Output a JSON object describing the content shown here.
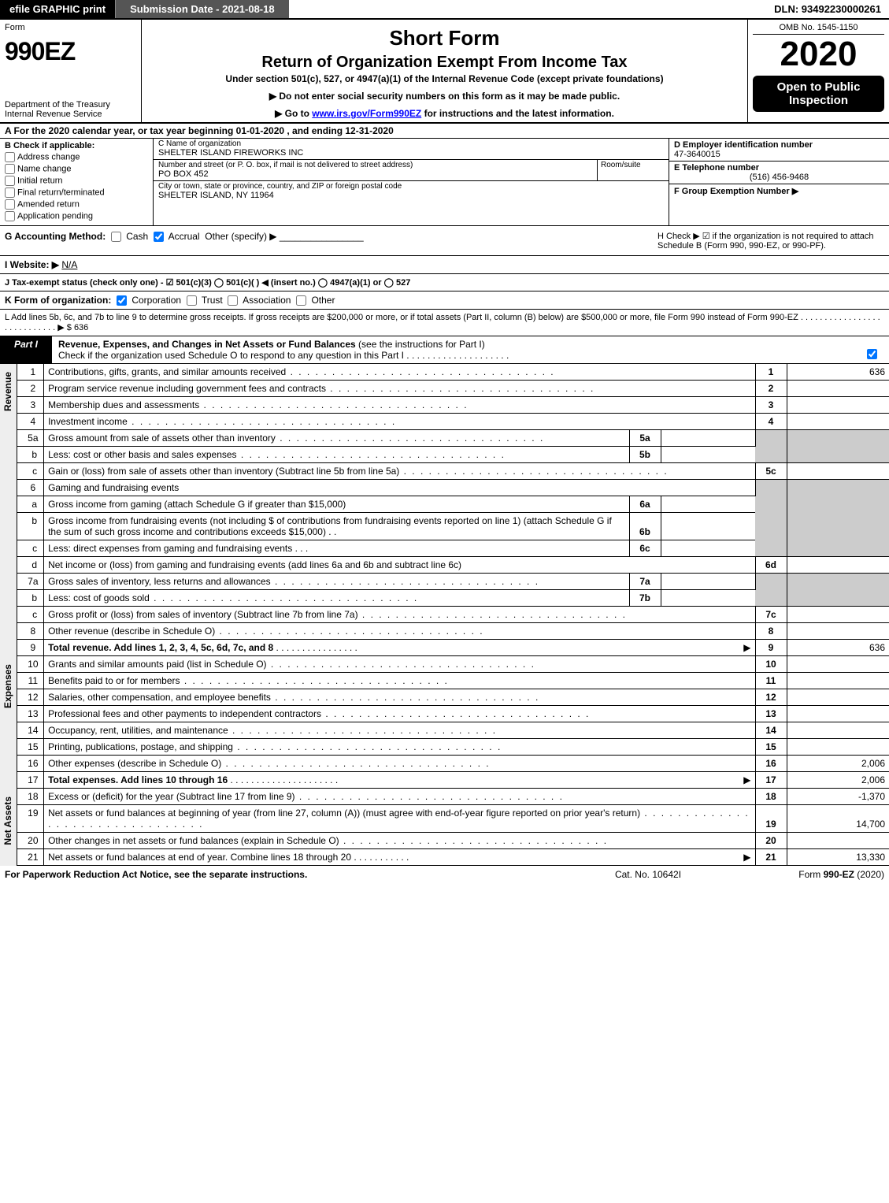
{
  "colors": {
    "black": "#000000",
    "white": "#ffffff",
    "dark_gray": "#555555",
    "shade": "#cccccc",
    "side_bg": "#eeeeee",
    "link": "#0000ff"
  },
  "top": {
    "efile": "efile GRAPHIC print",
    "submission": "Submission Date - 2021-08-18",
    "dln": "DLN: 93492230000261"
  },
  "header": {
    "form_small": "Form",
    "form_no": "990EZ",
    "dept1": "Department of the Treasury",
    "dept2": "Internal Revenue Service",
    "title1": "Short Form",
    "title2": "Return of Organization Exempt From Income Tax",
    "subtitle": "Under section 501(c), 527, or 4947(a)(1) of the Internal Revenue Code (except private foundations)",
    "note1": "▶ Do not enter social security numbers on this form as it may be made public.",
    "note2_pre": "▶ Go to ",
    "note2_link": "www.irs.gov/Form990EZ",
    "note2_post": " for instructions and the latest information.",
    "omb": "OMB No. 1545-1150",
    "year": "2020",
    "open": "Open to Public Inspection"
  },
  "row_a": "A  For the 2020 calendar year, or tax year beginning 01-01-2020 , and ending 12-31-2020",
  "col_b": {
    "title": "B  Check if applicable:",
    "opts": [
      "Address change",
      "Name change",
      "Initial return",
      "Final return/terminated",
      "Amended return",
      "Application pending"
    ]
  },
  "col_c": {
    "name_lbl": "C Name of organization",
    "name": "SHELTER ISLAND FIREWORKS INC",
    "street_lbl": "Number and street (or P. O. box, if mail is not delivered to street address)",
    "room_lbl": "Room/suite",
    "street": "PO BOX 452",
    "city_lbl": "City or town, state or province, country, and ZIP or foreign postal code",
    "city": "SHELTER ISLAND, NY  11964"
  },
  "col_d": {
    "ein_lbl": "D Employer identification number",
    "ein": "47-3640015",
    "phone_lbl": "E Telephone number",
    "phone": "(516) 456-9468",
    "group_lbl": "F Group Exemption Number   ▶"
  },
  "row_g": {
    "label": "G Accounting Method:",
    "cash": "Cash",
    "accrual": "Accrual",
    "other": "Other (specify) ▶"
  },
  "row_h": "H  Check ▶ ☑ if the organization is not required to attach Schedule B (Form 990, 990-EZ, or 990-PF).",
  "row_i": {
    "label": "I Website: ▶",
    "val": "N/A"
  },
  "row_j": "J Tax-exempt status (check only one) - ☑ 501(c)(3)  ◯ 501(c)(  ) ◀ (insert no.)  ◯ 4947(a)(1) or  ◯ 527",
  "row_k": {
    "label": "K Form of organization:",
    "corp": "Corporation",
    "trust": "Trust",
    "assoc": "Association",
    "other": "Other"
  },
  "row_l": {
    "text": "L Add lines 5b, 6c, and 7b to line 9 to determine gross receipts. If gross receipts are $200,000 or more, or if total assets (Part II, column (B) below) are $500,000 or more, file Form 990 instead of Form 990-EZ  .  .  .  .  .  .  .  .  .  .  .  .  .  .  .  .  .  .  .  .  .  .  .  .  .  .  .  .  ▶ $",
    "amount": "636"
  },
  "part1": {
    "tab": "Part I",
    "title_b": "Revenue, Expenses, and Changes in Net Assets or Fund Balances",
    "title_rest": " (see the instructions for Part I)",
    "check_line": "Check if the organization used Schedule O to respond to any question in this Part I .  .  .  .  .  .  .  .  .  .  .  .  .  .  .  .  .  .  .  ."
  },
  "side_labels": {
    "rev": "Revenue",
    "exp": "Expenses",
    "net": "Net Assets"
  },
  "lines": {
    "l1": {
      "no": "1",
      "desc": "Contributions, gifts, grants, and similar amounts received",
      "rt_no": "1",
      "rt_val": "636"
    },
    "l2": {
      "no": "2",
      "desc": "Program service revenue including government fees and contracts",
      "rt_no": "2",
      "rt_val": ""
    },
    "l3": {
      "no": "3",
      "desc": "Membership dues and assessments",
      "rt_no": "3",
      "rt_val": ""
    },
    "l4": {
      "no": "4",
      "desc": "Investment income",
      "rt_no": "4",
      "rt_val": ""
    },
    "l5a": {
      "no": "5a",
      "desc": "Gross amount from sale of assets other than inventory",
      "mid_no": "5a"
    },
    "l5b": {
      "no": "b",
      "desc": "Less: cost or other basis and sales expenses",
      "mid_no": "5b"
    },
    "l5c": {
      "no": "c",
      "desc": "Gain or (loss) from sale of assets other than inventory (Subtract line 5b from line 5a)",
      "rt_no": "5c"
    },
    "l6": {
      "no": "6",
      "desc": "Gaming and fundraising events"
    },
    "l6a": {
      "no": "a",
      "desc": "Gross income from gaming (attach Schedule G if greater than $15,000)",
      "mid_no": "6a"
    },
    "l6b": {
      "no": "b",
      "desc": "Gross income from fundraising events (not including $                       of contributions from fundraising events reported on line 1) (attach Schedule G if the sum of such gross income and contributions exceeds $15,000)",
      "mid_no": "6b"
    },
    "l6c": {
      "no": "c",
      "desc": "Less: direct expenses from gaming and fundraising events",
      "mid_no": "6c"
    },
    "l6d": {
      "no": "d",
      "desc": "Net income or (loss) from gaming and fundraising events (add lines 6a and 6b and subtract line 6c)",
      "rt_no": "6d"
    },
    "l7a": {
      "no": "7a",
      "desc": "Gross sales of inventory, less returns and allowances",
      "mid_no": "7a"
    },
    "l7b": {
      "no": "b",
      "desc": "Less: cost of goods sold",
      "mid_no": "7b"
    },
    "l7c": {
      "no": "c",
      "desc": "Gross profit or (loss) from sales of inventory (Subtract line 7b from line 7a)",
      "rt_no": "7c"
    },
    "l8": {
      "no": "8",
      "desc": "Other revenue (describe in Schedule O)",
      "rt_no": "8"
    },
    "l9": {
      "no": "9",
      "desc": "Total revenue. Add lines 1, 2, 3, 4, 5c, 6d, 7c, and 8",
      "rt_no": "9",
      "rt_val": "636",
      "arrow": "▶"
    },
    "l10": {
      "no": "10",
      "desc": "Grants and similar amounts paid (list in Schedule O)",
      "rt_no": "10"
    },
    "l11": {
      "no": "11",
      "desc": "Benefits paid to or for members",
      "rt_no": "11"
    },
    "l12": {
      "no": "12",
      "desc": "Salaries, other compensation, and employee benefits",
      "rt_no": "12"
    },
    "l13": {
      "no": "13",
      "desc": "Professional fees and other payments to independent contractors",
      "rt_no": "13"
    },
    "l14": {
      "no": "14",
      "desc": "Occupancy, rent, utilities, and maintenance",
      "rt_no": "14"
    },
    "l15": {
      "no": "15",
      "desc": "Printing, publications, postage, and shipping",
      "rt_no": "15"
    },
    "l16": {
      "no": "16",
      "desc": "Other expenses (describe in Schedule O)",
      "rt_no": "16",
      "rt_val": "2,006"
    },
    "l17": {
      "no": "17",
      "desc": "Total expenses. Add lines 10 through 16",
      "rt_no": "17",
      "rt_val": "2,006",
      "arrow": "▶"
    },
    "l18": {
      "no": "18",
      "desc": "Excess or (deficit) for the year (Subtract line 17 from line 9)",
      "rt_no": "18",
      "rt_val": "-1,370"
    },
    "l19": {
      "no": "19",
      "desc": "Net assets or fund balances at beginning of year (from line 27, column (A)) (must agree with end-of-year figure reported on prior year's return)",
      "rt_no": "19",
      "rt_val": "14,700"
    },
    "l20": {
      "no": "20",
      "desc": "Other changes in net assets or fund balances (explain in Schedule O)",
      "rt_no": "20"
    },
    "l21": {
      "no": "21",
      "desc": "Net assets or fund balances at end of year. Combine lines 18 through 20",
      "rt_no": "21",
      "rt_val": "13,330",
      "arrow": "▶"
    }
  },
  "footer": {
    "left": "For Paperwork Reduction Act Notice, see the separate instructions.",
    "center": "Cat. No. 10642I",
    "right_pre": "Form ",
    "right_b": "990-EZ",
    "right_post": " (2020)"
  }
}
